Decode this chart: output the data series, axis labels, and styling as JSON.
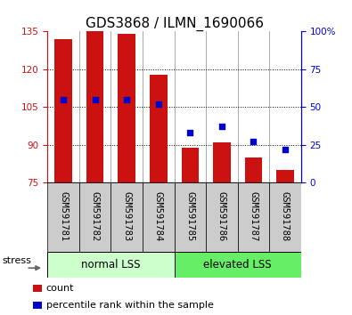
{
  "title": "GDS3868 / ILMN_1690066",
  "categories": [
    "GSM591781",
    "GSM591782",
    "GSM591783",
    "GSM591784",
    "GSM591785",
    "GSM591786",
    "GSM591787",
    "GSM591788"
  ],
  "counts": [
    132,
    135,
    134,
    118,
    89,
    91,
    85,
    80
  ],
  "percentiles": [
    55,
    55,
    55,
    52,
    33,
    37,
    27,
    22
  ],
  "ylim_left": [
    75,
    135
  ],
  "ylim_right": [
    0,
    100
  ],
  "yticks_left": [
    75,
    90,
    105,
    120,
    135
  ],
  "yticks_right": [
    0,
    25,
    50,
    75,
    100
  ],
  "bar_color": "#cc1111",
  "dot_color": "#0000cc",
  "bar_width": 0.55,
  "group1_label": "normal LSS",
  "group2_label": "elevated LSS",
  "group1_color": "#ccffcc",
  "group2_color": "#66ee66",
  "group1_indices": [
    0,
    1,
    2,
    3
  ],
  "group2_indices": [
    4,
    5,
    6,
    7
  ],
  "stress_label": "stress",
  "legend_count_label": "count",
  "legend_pct_label": "percentile rank within the sample",
  "title_fontsize": 11,
  "tick_label_fontsize": 7.5,
  "separator_color": "#888888",
  "gray_box_color": "#cccccc",
  "right_pct_label": "100%"
}
